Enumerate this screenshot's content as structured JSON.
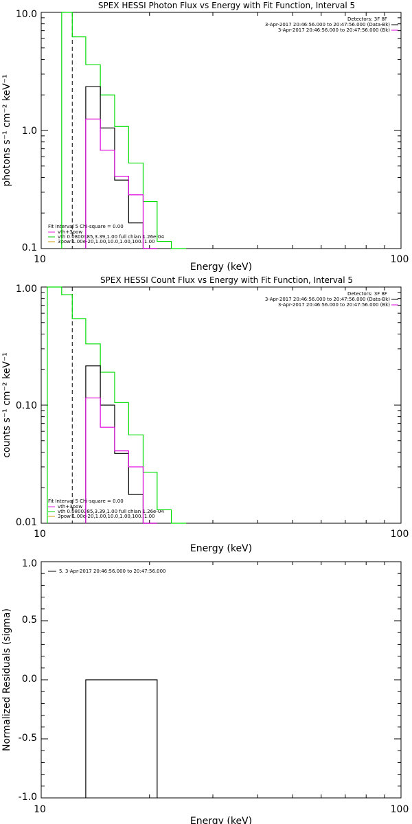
{
  "chart_data": [
    {
      "type": "line",
      "title": "SPEX HESSI Photon Flux vs Energy with Fit Function, Interval 5",
      "xlabel": "Energy (keV)",
      "ylabel": "photons s⁻¹ cm⁻² keV⁻¹",
      "xscale": "log",
      "yscale": "log",
      "xlim": [
        10,
        100
      ],
      "ylim": [
        0.1,
        10.0
      ],
      "x_ticks": [
        "10",
        "100"
      ],
      "y_ticks": [
        "0.1",
        "1.0",
        "10.0"
      ],
      "fit_lo": 12.2,
      "info_lines": [
        "Detectors: 3F 8F",
        "3-Apr-2017 20:46:56.000 to 20:47:56.000 (Data-Bk)",
        "3-Apr-2017 20:46:56.000 to 20:47:56.000 (Bk)"
      ],
      "annotations": [
        "Fit Interval 5   Chi-square = 0.00",
        "vth+3pow",
        "vth 0.0800385,3.39,1.00  full chian 1.26e-04",
        "3pow 1.00e-20,1.00,10.0,1.00,100.,1.00"
      ],
      "annotation_colors": [
        "#000000",
        "#dd22dd",
        "#00cc00",
        "#cc9900"
      ],
      "legend_colors": [
        "#000000",
        "#dd00dd"
      ],
      "series": [
        {
          "color": "#00dd00",
          "edges": [
            11.4,
            12.2,
            13.3,
            14.6,
            16.0,
            17.5,
            19.2,
            21.0,
            23.0,
            25.3
          ],
          "values": [
            12.0,
            6.2,
            3.6,
            2.0,
            1.08,
            0.53,
            0.25,
            0.115,
            0.08
          ]
        },
        {
          "color": "#000000",
          "edges": [
            13.3,
            14.6,
            16.0,
            17.5,
            19.2,
            21.0
          ],
          "values": [
            2.35,
            1.05,
            0.38,
            0.165,
            0.08
          ]
        },
        {
          "color": "#dd00dd",
          "edges": [
            13.3,
            14.6,
            16.0,
            17.5,
            19.2,
            21.0
          ],
          "values": [
            1.25,
            0.68,
            0.41,
            0.285,
            0.05
          ]
        }
      ]
    },
    {
      "type": "line",
      "title": "SPEX HESSI Count Flux vs Energy with Fit Function, Interval 5",
      "xlabel": "Energy (keV)",
      "ylabel": "counts s⁻¹ cm⁻² keV⁻¹",
      "xscale": "log",
      "yscale": "log",
      "xlim": [
        10,
        100
      ],
      "ylim": [
        0.01,
        1.0
      ],
      "x_ticks": [
        "10",
        "100"
      ],
      "y_ticks": [
        "0.01",
        "0.10",
        "1.00"
      ],
      "fit_lo": 12.2,
      "info_lines": [
        "Detectors: 3F 8F",
        "3-Apr-2017 20:46:56.000 to 20:47:56.000 (Data-Bk)",
        "3-Apr-2017 20:46:56.000 to 20:47:56.000 (Bk)"
      ],
      "annotations": [
        "Fit Interval 5   Chi-square = 0.00",
        "vth+3pow",
        "vth 0.0800385,3.39,1.00  full chian 1.26e-04",
        "3pow 1.00e-20,1.00,10.0,1.00,100.,1.00"
      ],
      "annotation_colors": [
        "#000000",
        "#dd22dd",
        "#00cc00",
        "#cc9900"
      ],
      "legend_colors": [
        "#000000",
        "#dd00dd"
      ],
      "series": [
        {
          "color": "#00dd00",
          "edges": [
            10.4,
            11.4,
            12.2,
            13.3,
            14.6,
            16.0,
            17.5,
            19.2,
            21.0,
            23.0,
            25.3
          ],
          "values": [
            1.05,
            0.86,
            0.54,
            0.33,
            0.19,
            0.105,
            0.056,
            0.027,
            0.013,
            0.009
          ]
        },
        {
          "color": "#000000",
          "edges": [
            13.3,
            14.6,
            16.0,
            17.5,
            19.2,
            21.0
          ],
          "values": [
            0.215,
            0.1,
            0.039,
            0.0175,
            0.005
          ]
        },
        {
          "color": "#dd00dd",
          "edges": [
            13.3,
            14.6,
            16.0,
            17.5,
            19.2,
            21.0
          ],
          "values": [
            0.115,
            0.065,
            0.041,
            0.03,
            0.005
          ]
        }
      ]
    },
    {
      "type": "line",
      "title": "",
      "xlabel": "Energy (keV)",
      "ylabel": "Normalized Residuals (sigma)",
      "xscale": "log",
      "yscale": "linear",
      "xlim": [
        10,
        100
      ],
      "ylim": [
        -1.0,
        1.0
      ],
      "x_ticks": [
        "10",
        "100"
      ],
      "y_ticks": [
        "-1.0",
        "-0.5",
        "0.0",
        "0.5",
        "1.0"
      ],
      "legend_text": "5. 3-Apr-2017 20:46:56.000 to 20:47:56.000",
      "series": [
        {
          "color": "#000000",
          "edges": [
            13.3,
            14.6,
            16.0,
            17.5,
            19.2,
            21.0
          ],
          "values": [
            0,
            0,
            0,
            0,
            0
          ]
        }
      ]
    }
  ]
}
